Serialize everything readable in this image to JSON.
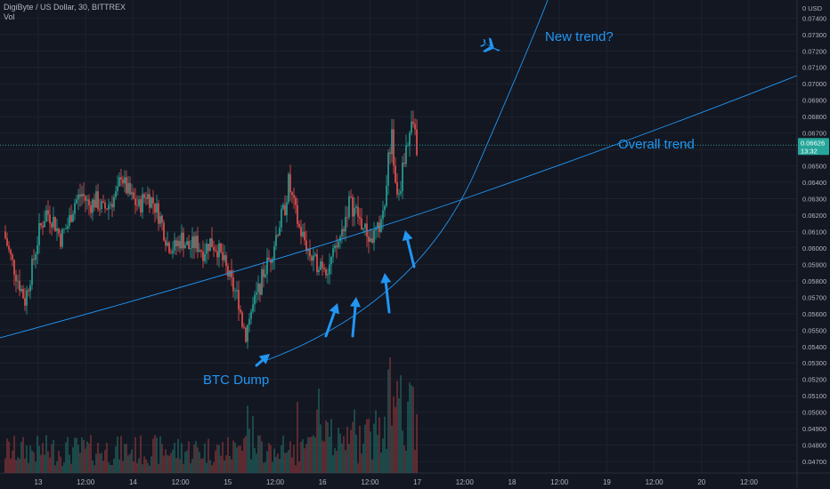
{
  "header": {
    "symbol_line": "DigiByte / US Dollar, 30, BITTREX",
    "volume_label": "Vol"
  },
  "price_axis": {
    "currency_label": "USD",
    "current_price": "0.06626",
    "countdown": "13:32"
  },
  "chart_data": {
    "type": "candlestick",
    "ylim": [
      0.0463,
      0.0751
    ],
    "grid": true,
    "y_ticks": [
      "0.07400",
      "0.07300",
      "0.07200",
      "0.07100",
      "0.07000",
      "0.06900",
      "0.06800",
      "0.06700",
      "0.06600",
      "0.06500",
      "0.06400",
      "0.06300",
      "0.06200",
      "0.06100",
      "0.06000",
      "0.05900",
      "0.05800",
      "0.05700",
      "0.05600",
      "0.05500",
      "0.05400",
      "0.05300",
      "0.05200",
      "0.05100",
      "0.05000",
      "0.04900",
      "0.04800",
      "0.04700"
    ],
    "x_ticks": [
      "13",
      "12:00",
      "14",
      "12:00",
      "15",
      "12:00",
      "16",
      "12:00",
      "17",
      "12:00",
      "18",
      "12:00",
      "19",
      "12:00",
      "20",
      "12:00"
    ],
    "price_path": [
      [
        0,
        0.061
      ],
      [
        4,
        0.0594
      ],
      [
        8,
        0.0581
      ],
      [
        12,
        0.0568
      ],
      [
        16,
        0.0588
      ],
      [
        20,
        0.061
      ],
      [
        24,
        0.0622
      ],
      [
        28,
        0.0617
      ],
      [
        32,
        0.0606
      ],
      [
        36,
        0.0614
      ],
      [
        40,
        0.0628
      ],
      [
        44,
        0.0633
      ],
      [
        48,
        0.0626
      ],
      [
        52,
        0.0629
      ],
      [
        56,
        0.0623
      ],
      [
        60,
        0.0628
      ],
      [
        64,
        0.0633
      ],
      [
        66,
        0.0646
      ],
      [
        68,
        0.0638
      ],
      [
        72,
        0.063
      ],
      [
        76,
        0.0625
      ],
      [
        80,
        0.0633
      ],
      [
        84,
        0.0628
      ],
      [
        88,
        0.0618
      ],
      [
        92,
        0.0603
      ],
      [
        96,
        0.06
      ],
      [
        100,
        0.0606
      ],
      [
        104,
        0.06
      ],
      [
        108,
        0.0603
      ],
      [
        112,
        0.0598
      ],
      [
        116,
        0.0604
      ],
      [
        120,
        0.06
      ],
      [
        124,
        0.059
      ],
      [
        128,
        0.0578
      ],
      [
        132,
        0.0568
      ],
      [
        134,
        0.0555
      ],
      [
        136,
        0.0548
      ],
      [
        138,
        0.0558
      ],
      [
        142,
        0.057
      ],
      [
        146,
        0.0585
      ],
      [
        150,
        0.0595
      ],
      [
        154,
        0.0612
      ],
      [
        158,
        0.0625
      ],
      [
        160,
        0.064
      ],
      [
        162,
        0.063
      ],
      [
        166,
        0.0612
      ],
      [
        170,
        0.0602
      ],
      [
        174,
        0.059
      ],
      [
        178,
        0.0592
      ],
      [
        182,
        0.0588
      ],
      [
        186,
        0.0597
      ],
      [
        190,
        0.061
      ],
      [
        194,
        0.0628
      ],
      [
        198,
        0.0622
      ],
      [
        202,
        0.0612
      ],
      [
        206,
        0.0605
      ],
      [
        210,
        0.061
      ],
      [
        214,
        0.0626
      ],
      [
        216,
        0.0656
      ],
      [
        218,
        0.0668
      ],
      [
        220,
        0.0638
      ],
      [
        222,
        0.063
      ],
      [
        224,
        0.0648
      ],
      [
        226,
        0.0662
      ],
      [
        228,
        0.067
      ],
      [
        230,
        0.0676
      ],
      [
        232,
        0.0662
      ]
    ],
    "current_price_line": 0.06626,
    "volume_ylim": [
      0,
      1
    ],
    "annotations": [
      {
        "type": "text",
        "text": "New trend?",
        "color": "#2196f3"
      },
      {
        "type": "text",
        "text": "Overall trend",
        "color": "#2196f3"
      },
      {
        "type": "text",
        "text": "BTC Dump",
        "color": "#2196f3"
      },
      {
        "type": "icon",
        "name": "airplane-icon",
        "color": "#2196f3"
      }
    ],
    "colors": {
      "up": "#26a69a",
      "down": "#ef5350",
      "volume_up": "#1f5f5a",
      "volume_down": "#7c3336",
      "trendline": "#2196f3",
      "grid": "#1e222d",
      "axis_text": "#b2b5be",
      "background": "#131722",
      "price_label": "#26a69a"
    }
  }
}
